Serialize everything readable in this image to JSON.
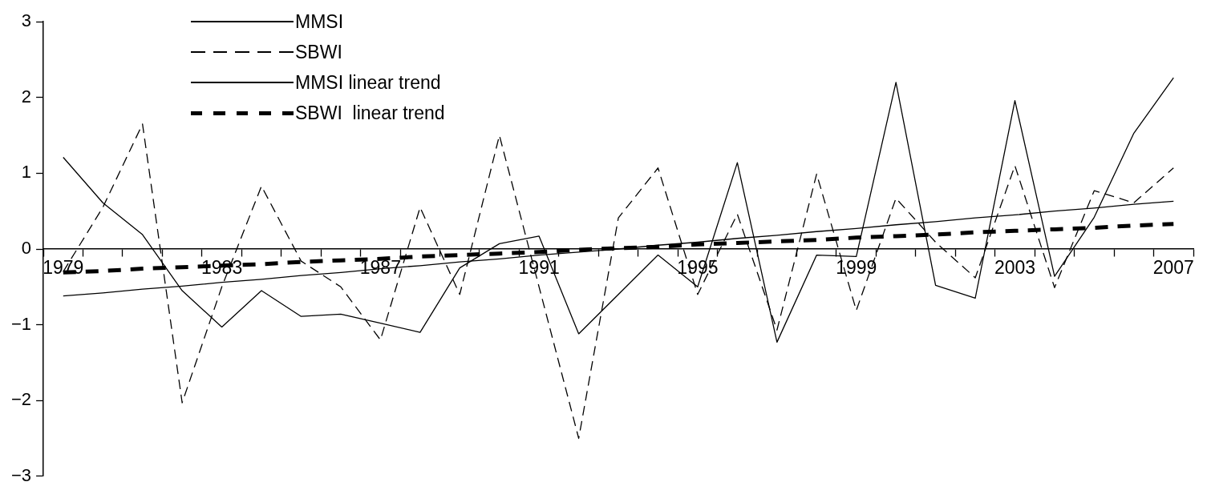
{
  "chart_data": {
    "type": "line",
    "categories": [
      "1979",
      null,
      null,
      null,
      "1983",
      null,
      null,
      null,
      "1987",
      null,
      null,
      null,
      "1991",
      null,
      null,
      null,
      "1995",
      null,
      null,
      null,
      "1999",
      null,
      null,
      null,
      "2003",
      null,
      null,
      null,
      "2007"
    ],
    "ylim": [
      -3,
      3
    ],
    "yticks": [
      -3,
      -2,
      -1,
      0,
      1,
      2,
      3
    ],
    "grid": false,
    "legend": "top left",
    "marker": "none",
    "series": [
      {
        "name": "MMSI",
        "color": "#000000",
        "line_style": "solid",
        "values": [
          1.21,
          0.61,
          0.19,
          -0.55,
          -1.03,
          -0.55,
          -0.89,
          -0.86,
          -0.98,
          -1.1,
          -0.25,
          0.07,
          0.17,
          -1.12,
          -0.6,
          -0.08,
          -0.5,
          1.14,
          -1.23,
          -0.08,
          -0.1,
          2.2,
          -0.48,
          -0.65,
          1.96,
          -0.36,
          0.42,
          1.53,
          2.26
        ]
      },
      {
        "name": "SBWI",
        "color": "#000000",
        "line_style": "dashed",
        "values": [
          -0.3,
          0.55,
          1.65,
          -2.03,
          -0.5,
          0.83,
          -0.16,
          -0.5,
          -1.2,
          0.55,
          -0.6,
          1.5,
          -0.5,
          -2.5,
          0.41,
          1.07,
          -0.6,
          0.46,
          -1.07,
          0.99,
          -0.81,
          0.67,
          0.09,
          -0.38,
          1.1,
          -0.51,
          0.77,
          0.61,
          1.07
        ]
      },
      {
        "name": "MMSI linear trend",
        "color": "#000000",
        "line_style": "solid",
        "values": [
          -0.62,
          -0.58,
          -0.53,
          -0.49,
          -0.44,
          -0.4,
          -0.35,
          -0.31,
          -0.26,
          -0.22,
          -0.17,
          -0.13,
          -0.08,
          -0.04,
          0.0,
          0.05,
          0.09,
          0.14,
          0.18,
          0.23,
          0.27,
          0.32,
          0.36,
          0.41,
          0.45,
          0.5,
          0.54,
          0.59,
          0.63
        ]
      },
      {
        "name": "SBWI  linear trend",
        "color": "#000000",
        "line_style": "dashed",
        "values": [
          -0.31,
          -0.29,
          -0.26,
          -0.24,
          -0.22,
          -0.2,
          -0.17,
          -0.15,
          -0.13,
          -0.1,
          -0.08,
          -0.06,
          -0.04,
          -0.01,
          0.01,
          0.03,
          0.06,
          0.08,
          0.1,
          0.12,
          0.15,
          0.17,
          0.19,
          0.22,
          0.24,
          0.26,
          0.28,
          0.31,
          0.33
        ]
      }
    ]
  }
}
